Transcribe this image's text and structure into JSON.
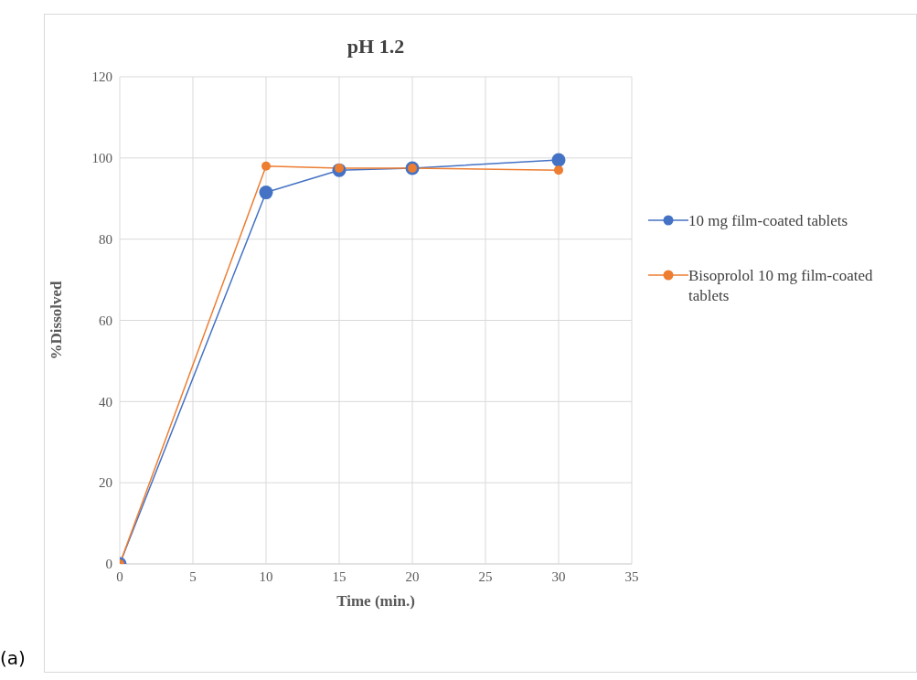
{
  "chart_data": {
    "type": "line",
    "title": "pH 1.2",
    "xlabel": "Time (min.)",
    "ylabel": "%Dissolved",
    "x": [
      0,
      10,
      15,
      20,
      30
    ],
    "series": [
      {
        "name": "10 mg film-coated tablets",
        "color": "#4472c4",
        "values": [
          0,
          91.5,
          97,
          97.5,
          99.5
        ]
      },
      {
        "name": "Bisoprolol 10 mg film-coated tablets",
        "color": "#ed7d31",
        "values": [
          0,
          98,
          97.5,
          97.5,
          97
        ]
      }
    ],
    "xlim": [
      0,
      35
    ],
    "xticks": [
      0,
      5,
      10,
      15,
      20,
      25,
      30,
      35
    ],
    "ylim": [
      0,
      120
    ],
    "yticks": [
      0,
      20,
      40,
      60,
      80,
      100,
      120
    ],
    "grid": true,
    "legend": "right",
    "marker": "circle",
    "line_style": "solid",
    "annotations": [
      "(a)"
    ]
  }
}
